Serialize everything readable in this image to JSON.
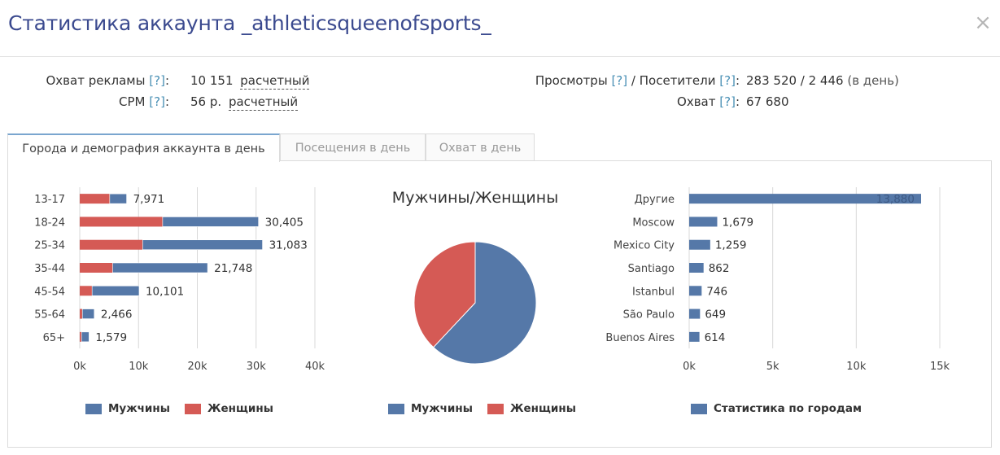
{
  "title": "Статистика аккаунта _athleticsqueenofsports_",
  "close_symbol": "×",
  "stats": {
    "reach_ads": {
      "label": "Охват рекламы",
      "help": "[?]",
      "value": "10 151",
      "note": "расчетный"
    },
    "cpm": {
      "label": "CPM",
      "help": "[?]",
      "value": "56 р.",
      "note": "расчетный"
    },
    "views": {
      "label_a": "Просмотры",
      "help_a": "[?]",
      "sep": "/",
      "label_b": "Посетители",
      "help_b": "[?]",
      "value": "283 520 / 2 446",
      "note": "(в день)"
    },
    "reach": {
      "label": "Охват",
      "help": "[?]",
      "value": "67 680"
    }
  },
  "tabs": [
    {
      "label": "Города и демография аккаунта в день",
      "active": true
    },
    {
      "label": "Посещения в день",
      "active": false
    },
    {
      "label": "Охват в день",
      "active": false
    }
  ],
  "colors": {
    "male": "#5578a8",
    "female": "#d55a55",
    "city": "#5578a8"
  },
  "legends": {
    "male": "Мужчины",
    "female": "Женщины",
    "cities": "Статистика по городам"
  },
  "chart_data": [
    {
      "type": "bar",
      "orientation": "horizontal",
      "stacked": true,
      "categories": [
        "13-17",
        "18-24",
        "25-34",
        "35-44",
        "45-54",
        "55-64",
        "65+"
      ],
      "series": [
        {
          "name": "Женщины",
          "values": [
            5100,
            14100,
            10700,
            5600,
            2100,
            450,
            300
          ]
        },
        {
          "name": "Мужчины",
          "values": [
            2871,
            16305,
            20383,
            16148,
            8001,
            2016,
            1279
          ]
        }
      ],
      "totals": [
        "7,971",
        "30,405",
        "31,083",
        "21,748",
        "10,101",
        "2,466",
        "1,579"
      ],
      "total_values": [
        7971,
        30405,
        31083,
        21748,
        10101,
        2466,
        1579
      ],
      "xlim": [
        0,
        40000
      ],
      "xticks": [
        "0k",
        "10k",
        "20k",
        "30k",
        "40k"
      ],
      "legend": "bottom"
    },
    {
      "type": "pie",
      "title": "Мужчины/Женщины",
      "slices": [
        {
          "name": "Мужчины",
          "value": 62
        },
        {
          "name": "Женщины",
          "value": 38
        }
      ],
      "legend": "bottom"
    },
    {
      "type": "bar",
      "orientation": "horizontal",
      "categories": [
        "Другие",
        "Moscow",
        "Mexico City",
        "Santiago",
        "Istanbul",
        "São Paulo",
        "Buenos Aires"
      ],
      "series": [
        {
          "name": "Статистика по городам",
          "values": [
            13880,
            1679,
            1259,
            862,
            746,
            649,
            614
          ]
        }
      ],
      "labels": [
        "13,880",
        "1,679",
        "1,259",
        "862",
        "746",
        "649",
        "614"
      ],
      "xlim": [
        0,
        15000
      ],
      "xticks": [
        "0k",
        "5k",
        "10k",
        "15k"
      ],
      "legend": "bottom"
    }
  ]
}
